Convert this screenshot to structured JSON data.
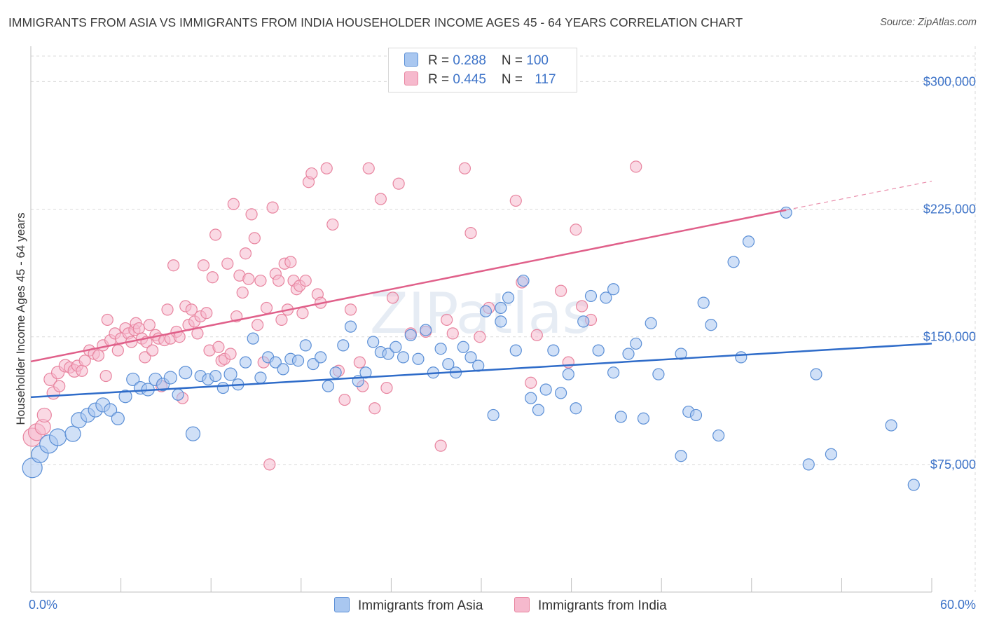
{
  "title": "IMMIGRANTS FROM ASIA VS IMMIGRANTS FROM INDIA HOUSEHOLDER INCOME AGES 45 - 64 YEARS CORRELATION CHART",
  "source": "Source: ZipAtlas.com",
  "watermark": "ZIPatlas",
  "legend": {
    "asia": {
      "r_label": "R = ",
      "r_value": "0.288",
      "n_label": "N = ",
      "n_value": "100"
    },
    "india": {
      "r_label": "R = ",
      "r_value": "0.445",
      "n_label": "N = ",
      "n_value": "117"
    }
  },
  "bottom_legend": {
    "asia": "Immigrants from Asia",
    "india": "Immigrants from India"
  },
  "colors": {
    "asia_fill": "#a9c7f0",
    "asia_stroke": "#5b8fd6",
    "asia_line": "#2f6cc9",
    "india_fill": "#f6b9cd",
    "india_stroke": "#e8849f",
    "india_line": "#e0608a",
    "axis_text": "#3d73c8",
    "grid": "#d9d9d9"
  },
  "chart_data": {
    "type": "scatter",
    "title": "IMMIGRANTS FROM ASIA VS IMMIGRANTS FROM INDIA HOUSEHOLDER INCOME AGES 45 - 64 YEARS CORRELATION CHART",
    "xlabel": "",
    "ylabel": "Householder Income Ages 45 - 64 years",
    "xlim": [
      0,
      60
    ],
    "ylim": [
      0,
      315000
    ],
    "x_tick_labels": [
      "0.0%",
      "60.0%"
    ],
    "y_ticks": [
      75000,
      150000,
      225000,
      300000
    ],
    "y_tick_labels": [
      "$75,000",
      "$150,000",
      "$225,000",
      "$300,000"
    ],
    "grid": true,
    "series": [
      {
        "name": "Immigrants from Asia",
        "R": 0.288,
        "N": 100,
        "trend": {
          "x": [
            0,
            60
          ],
          "y": [
            114500,
            146000
          ]
        },
        "points": [
          [
            0.1,
            73000,
            14
          ],
          [
            0.6,
            81000,
            12
          ],
          [
            1.2,
            87000,
            13
          ],
          [
            1.8,
            91000,
            12
          ],
          [
            2.8,
            93000,
            11
          ],
          [
            3.2,
            101000,
            11
          ],
          [
            3.8,
            104000,
            10
          ],
          [
            4.3,
            107000,
            10
          ],
          [
            4.8,
            110000,
            10
          ],
          [
            5.3,
            107000,
            9
          ],
          [
            5.8,
            102000,
            9
          ],
          [
            6.3,
            115000,
            9
          ],
          [
            6.8,
            125000,
            9
          ],
          [
            7.3,
            120000,
            9
          ],
          [
            7.8,
            119000,
            9
          ],
          [
            8.3,
            125000,
            9
          ],
          [
            8.8,
            122000,
            9
          ],
          [
            9.3,
            126000,
            9
          ],
          [
            9.8,
            116000,
            8
          ],
          [
            10.3,
            129000,
            9
          ],
          [
            10.8,
            93000,
            10
          ],
          [
            11.3,
            127000,
            8
          ],
          [
            11.8,
            125000,
            8
          ],
          [
            12.3,
            127000,
            8
          ],
          [
            12.8,
            120000,
            8
          ],
          [
            13.3,
            128000,
            9
          ],
          [
            13.8,
            122000,
            8
          ],
          [
            14.3,
            135000,
            8
          ],
          [
            14.8,
            149000,
            8
          ],
          [
            15.3,
            126000,
            8
          ],
          [
            15.8,
            138000,
            8
          ],
          [
            16.3,
            135000,
            8
          ],
          [
            16.8,
            131000,
            8
          ],
          [
            17.3,
            137000,
            8
          ],
          [
            17.8,
            136000,
            8
          ],
          [
            18.3,
            145000,
            8
          ],
          [
            18.8,
            134000,
            8
          ],
          [
            19.3,
            138000,
            8
          ],
          [
            19.8,
            121000,
            8
          ],
          [
            20.3,
            129000,
            8
          ],
          [
            20.8,
            145000,
            8
          ],
          [
            21.3,
            156000,
            8
          ],
          [
            21.8,
            124000,
            8
          ],
          [
            22.3,
            129000,
            8
          ],
          [
            22.8,
            147000,
            8
          ],
          [
            23.3,
            141000,
            8
          ],
          [
            23.8,
            140000,
            8
          ],
          [
            24.3,
            144000,
            8
          ],
          [
            24.8,
            138000,
            8
          ],
          [
            25.3,
            151000,
            8
          ],
          [
            25.8,
            137000,
            8
          ],
          [
            26.3,
            154000,
            8
          ],
          [
            26.8,
            129000,
            8
          ],
          [
            27.3,
            143000,
            8
          ],
          [
            27.8,
            134000,
            8
          ],
          [
            28.3,
            129000,
            8
          ],
          [
            28.8,
            144000,
            8
          ],
          [
            29.3,
            138000,
            8
          ],
          [
            29.8,
            133000,
            8
          ],
          [
            30.3,
            165000,
            8
          ],
          [
            30.8,
            104000,
            8
          ],
          [
            31.3,
            167000,
            8
          ],
          [
            31.8,
            173000,
            8
          ],
          [
            32.3,
            142000,
            8
          ],
          [
            32.8,
            183000,
            8
          ],
          [
            33.3,
            114000,
            8
          ],
          [
            33.8,
            107000,
            8
          ],
          [
            34.3,
            119000,
            8
          ],
          [
            34.8,
            142000,
            8
          ],
          [
            35.3,
            117000,
            8
          ],
          [
            35.8,
            128000,
            8
          ],
          [
            36.3,
            108000,
            8
          ],
          [
            36.8,
            159000,
            8
          ],
          [
            37.3,
            174000,
            8
          ],
          [
            37.8,
            142000,
            8
          ],
          [
            38.3,
            173000,
            8
          ],
          [
            38.8,
            178000,
            8
          ],
          [
            39.3,
            103000,
            8
          ],
          [
            39.8,
            140000,
            8
          ],
          [
            40.3,
            146000,
            8
          ],
          [
            40.8,
            102000,
            8
          ],
          [
            41.3,
            158000,
            8
          ],
          [
            41.8,
            128000,
            8
          ],
          [
            43.3,
            80000,
            8
          ],
          [
            43.8,
            106000,
            8
          ],
          [
            44.3,
            104000,
            8
          ],
          [
            44.8,
            170000,
            8
          ],
          [
            45.3,
            157000,
            8
          ],
          [
            45.8,
            92000,
            8
          ],
          [
            46.8,
            194000,
            8
          ],
          [
            47.3,
            138000,
            8
          ],
          [
            47.8,
            206000,
            8
          ],
          [
            50.3,
            223000,
            8
          ],
          [
            51.8,
            75000,
            8
          ],
          [
            52.3,
            128000,
            8
          ],
          [
            53.3,
            81000,
            8
          ],
          [
            57.3,
            98000,
            8
          ],
          [
            58.8,
            63000,
            8
          ],
          [
            43.3,
            140000,
            8
          ],
          [
            38.8,
            129000,
            8
          ],
          [
            31.3,
            159000,
            8
          ]
        ]
      },
      {
        "name": "Immigrants from India",
        "R": 0.445,
        "N": 117,
        "trend": {
          "x": [
            0,
            50.3
          ],
          "y": [
            135500,
            224500
          ]
        },
        "trend_dashed": {
          "x": [
            50.3,
            60
          ],
          "y": [
            224500,
            241500
          ]
        },
        "points": [
          [
            0.1,
            91000,
            13
          ],
          [
            0.4,
            94000,
            12
          ],
          [
            0.8,
            97000,
            11
          ],
          [
            0.9,
            104000,
            10
          ],
          [
            1.3,
            125000,
            9
          ],
          [
            1.5,
            117000,
            9
          ],
          [
            1.8,
            129000,
            9
          ],
          [
            1.9,
            121000,
            8
          ],
          [
            2.3,
            133000,
            9
          ],
          [
            2.6,
            132000,
            8
          ],
          [
            2.9,
            130000,
            9
          ],
          [
            3.1,
            133000,
            8
          ],
          [
            3.4,
            130000,
            8
          ],
          [
            3.6,
            136000,
            8
          ],
          [
            3.9,
            142000,
            8
          ],
          [
            4.2,
            140000,
            8
          ],
          [
            4.5,
            139000,
            8
          ],
          [
            4.8,
            145000,
            8
          ],
          [
            5.0,
            127000,
            8
          ],
          [
            5.1,
            160000,
            8
          ],
          [
            5.3,
            148000,
            8
          ],
          [
            5.6,
            152000,
            8
          ],
          [
            5.8,
            142000,
            8
          ],
          [
            6.0,
            149000,
            8
          ],
          [
            6.3,
            155000,
            8
          ],
          [
            6.5,
            152000,
            8
          ],
          [
            6.7,
            147000,
            8
          ],
          [
            6.9,
            154000,
            8
          ],
          [
            7.0,
            158000,
            8
          ],
          [
            7.2,
            155000,
            8
          ],
          [
            7.4,
            149000,
            8
          ],
          [
            7.6,
            138000,
            8
          ],
          [
            7.7,
            147000,
            8
          ],
          [
            7.9,
            157000,
            8
          ],
          [
            8.1,
            142000,
            8
          ],
          [
            8.3,
            151000,
            8
          ],
          [
            8.5,
            149000,
            8
          ],
          [
            8.7,
            121000,
            8
          ],
          [
            8.9,
            148000,
            8
          ],
          [
            9.1,
            166000,
            8
          ],
          [
            9.3,
            149000,
            8
          ],
          [
            9.5,
            192000,
            8
          ],
          [
            9.7,
            153000,
            8
          ],
          [
            9.9,
            150000,
            8
          ],
          [
            10.1,
            114000,
            8
          ],
          [
            10.3,
            168000,
            8
          ],
          [
            10.5,
            157000,
            8
          ],
          [
            10.7,
            166000,
            8
          ],
          [
            10.9,
            159000,
            8
          ],
          [
            11.1,
            152000,
            8
          ],
          [
            11.3,
            162000,
            8
          ],
          [
            11.5,
            192000,
            8
          ],
          [
            11.7,
            164000,
            8
          ],
          [
            11.9,
            142000,
            8
          ],
          [
            12.1,
            185000,
            8
          ],
          [
            12.3,
            210000,
            8
          ],
          [
            12.5,
            144000,
            8
          ],
          [
            12.7,
            136000,
            8
          ],
          [
            12.9,
            137000,
            8
          ],
          [
            13.1,
            193000,
            8
          ],
          [
            13.3,
            140000,
            8
          ],
          [
            13.5,
            228000,
            8
          ],
          [
            13.7,
            162000,
            8
          ],
          [
            13.9,
            186000,
            8
          ],
          [
            14.1,
            176000,
            8
          ],
          [
            14.3,
            199000,
            8
          ],
          [
            14.5,
            184000,
            8
          ],
          [
            14.7,
            222000,
            8
          ],
          [
            14.9,
            208000,
            8
          ],
          [
            15.1,
            157000,
            8
          ],
          [
            15.3,
            183000,
            8
          ],
          [
            15.5,
            135000,
            8
          ],
          [
            15.7,
            167000,
            8
          ],
          [
            15.9,
            75000,
            8
          ],
          [
            16.1,
            226000,
            8
          ],
          [
            16.3,
            187000,
            8
          ],
          [
            16.5,
            183000,
            8
          ],
          [
            16.7,
            160000,
            8
          ],
          [
            16.9,
            193000,
            8
          ],
          [
            17.1,
            166000,
            8
          ],
          [
            17.3,
            194000,
            8
          ],
          [
            17.5,
            183000,
            8
          ],
          [
            17.7,
            178000,
            8
          ],
          [
            17.9,
            180000,
            8
          ],
          [
            18.1,
            164000,
            8
          ],
          [
            18.3,
            183000,
            8
          ],
          [
            18.5,
            241000,
            8
          ],
          [
            18.7,
            246000,
            8
          ],
          [
            19.1,
            175000,
            8
          ],
          [
            19.3,
            170000,
            8
          ],
          [
            19.7,
            249000,
            8
          ],
          [
            20.1,
            216000,
            8
          ],
          [
            20.5,
            130000,
            8
          ],
          [
            20.9,
            113000,
            8
          ],
          [
            21.3,
            166000,
            8
          ],
          [
            22.1,
            121000,
            8
          ],
          [
            22.5,
            249000,
            8
          ],
          [
            22.9,
            108000,
            8
          ],
          [
            23.3,
            231000,
            8
          ],
          [
            23.7,
            120000,
            8
          ],
          [
            24.1,
            173000,
            8
          ],
          [
            24.5,
            240000,
            8
          ],
          [
            25.3,
            152000,
            8
          ],
          [
            27.3,
            86000,
            8
          ],
          [
            27.7,
            160000,
            8
          ],
          [
            28.9,
            249000,
            8
          ],
          [
            29.3,
            211000,
            8
          ],
          [
            29.9,
            150000,
            8
          ],
          [
            30.5,
            167000,
            8
          ],
          [
            32.3,
            230000,
            8
          ],
          [
            32.7,
            182000,
            8
          ],
          [
            33.3,
            123000,
            8
          ],
          [
            33.7,
            151000,
            8
          ],
          [
            35.3,
            177000,
            8
          ],
          [
            36.3,
            213000,
            8
          ],
          [
            36.7,
            168000,
            8
          ],
          [
            37.3,
            160000,
            8
          ],
          [
            40.3,
            250000,
            8
          ],
          [
            35.8,
            135000,
            8
          ],
          [
            28.1,
            152000,
            8
          ],
          [
            21.9,
            135000,
            8
          ],
          [
            26.3,
            153000,
            8
          ]
        ]
      }
    ]
  }
}
